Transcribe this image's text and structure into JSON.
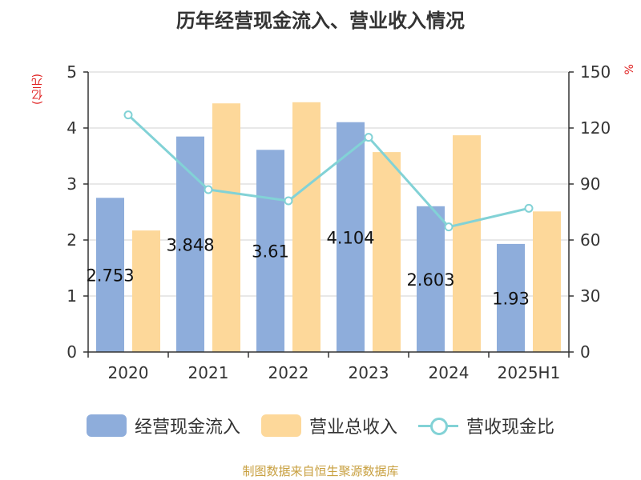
{
  "title": "历年经营现金流入、营业收入情况",
  "source": "制图数据来自恒生聚源数据库",
  "chart_data": {
    "type": "bar",
    "categories": [
      "2020",
      "2021",
      "2022",
      "2023",
      "2024",
      "2025H1"
    ],
    "ylabel_left": "(亿元)",
    "ylabel_right": "%",
    "ylim_left": [
      0,
      5
    ],
    "yticks_left": [
      0,
      1,
      2,
      3,
      4,
      5
    ],
    "ylim_right": [
      0,
      150
    ],
    "yticks_right": [
      0,
      30,
      60,
      90,
      120,
      150
    ],
    "grid": true,
    "legend_position": "bottom",
    "series": [
      {
        "name": "经营现金流入",
        "type": "bar",
        "axis": "left",
        "color": "#8eaddb",
        "values": [
          2.753,
          3.848,
          3.61,
          4.104,
          2.603,
          1.93
        ],
        "labels": [
          "2.753",
          "3.848",
          "3.61",
          "4.104",
          "2.603",
          "1.93"
        ]
      },
      {
        "name": "营业总收入",
        "type": "bar",
        "axis": "left",
        "color": "#fdd89a",
        "values": [
          2.17,
          4.44,
          4.46,
          3.57,
          3.87,
          2.51
        ]
      },
      {
        "name": "营收现金比",
        "type": "line",
        "axis": "right",
        "color": "#82d2d6",
        "values": [
          127,
          87,
          81,
          115,
          67,
          77
        ]
      }
    ]
  }
}
